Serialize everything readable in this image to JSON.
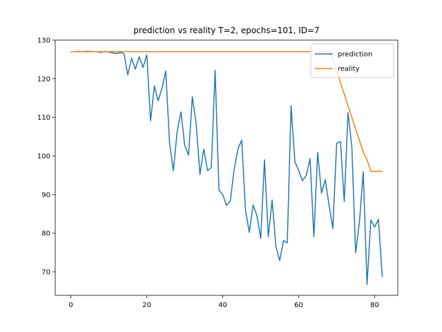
{
  "chart_data": {
    "type": "line",
    "title": "prediction vs reality T=2, epochs=101, ID=7",
    "xlabel": "",
    "ylabel": "",
    "xlim": [
      -4.1,
      86.1
    ],
    "ylim": [
      63.9,
      130
    ],
    "xticks": [
      0,
      20,
      40,
      60,
      80
    ],
    "yticks": [
      70,
      80,
      90,
      100,
      110,
      120,
      130
    ],
    "grid": false,
    "legend_position": "top-right",
    "series": [
      {
        "name": "prediction",
        "color": "#1f77b4",
        "x": [
          0,
          1,
          2,
          3,
          4,
          5,
          6,
          7,
          8,
          9,
          10,
          11,
          12,
          13,
          14,
          15,
          16,
          17,
          18,
          19,
          20,
          21,
          22,
          23,
          24,
          25,
          26,
          27,
          28,
          29,
          30,
          31,
          32,
          33,
          34,
          35,
          36,
          37,
          38,
          39,
          40,
          41,
          42,
          43,
          44,
          45,
          46,
          47,
          48,
          49,
          50,
          51,
          52,
          53,
          54,
          55,
          56,
          57,
          58,
          59,
          60,
          61,
          62,
          63,
          64,
          65,
          66,
          67,
          68,
          69,
          70,
          71,
          72,
          73,
          74,
          75,
          76,
          77,
          78,
          79,
          80,
          81,
          82
        ],
        "values": [
          127.0,
          127.0,
          127.1,
          127.0,
          127.1,
          127.1,
          127.0,
          127.0,
          126.8,
          127.1,
          126.9,
          126.7,
          126.5,
          126.8,
          126.5,
          121.0,
          125.3,
          122.5,
          125.7,
          122.9,
          126.2,
          109.1,
          118.1,
          114.3,
          117.5,
          122.0,
          103.3,
          96.2,
          106.3,
          111.4,
          102.7,
          100.2,
          115.3,
          108.4,
          95.2,
          101.8,
          96.2,
          97.0,
          122.2,
          91.2,
          90.0,
          87.2,
          88.4,
          96.4,
          101.8,
          104.1,
          85.9,
          80.2,
          87.3,
          84.6,
          78.6,
          99.0,
          79.1,
          88.6,
          76.6,
          72.9,
          78.1,
          77.5,
          113.0,
          98.5,
          96.2,
          93.6,
          95.0,
          99.3,
          79.1,
          100.9,
          90.4,
          93.8,
          87.3,
          81.2,
          103.3,
          103.7,
          88.2,
          111.2,
          102.3,
          74.9,
          82.9,
          95.9,
          66.7,
          83.4,
          81.6,
          83.6,
          68.8
        ]
      },
      {
        "name": "reality",
        "color": "#ff7f0e",
        "x": [
          0,
          1,
          2,
          3,
          4,
          5,
          6,
          7,
          8,
          9,
          10,
          11,
          12,
          13,
          14,
          15,
          16,
          17,
          18,
          19,
          20,
          21,
          22,
          23,
          24,
          25,
          26,
          27,
          28,
          29,
          30,
          31,
          32,
          33,
          34,
          35,
          36,
          37,
          38,
          39,
          40,
          41,
          42,
          43,
          44,
          45,
          46,
          47,
          48,
          49,
          50,
          51,
          52,
          53,
          54,
          55,
          56,
          57,
          58,
          59,
          60,
          61,
          62,
          63,
          64,
          65,
          66,
          67,
          68,
          69,
          70,
          71,
          72,
          73,
          74,
          75,
          76,
          77,
          78,
          79,
          80,
          81,
          82
        ],
        "values": [
          127,
          127,
          127,
          127,
          127,
          127,
          127,
          127,
          127,
          127,
          127,
          127,
          127,
          127,
          127,
          127,
          127,
          127,
          127,
          127,
          127,
          127,
          127,
          127,
          127,
          127,
          127,
          127,
          127,
          127,
          127,
          127,
          127,
          127,
          127,
          127,
          127,
          127,
          127,
          127,
          127,
          127,
          127,
          127,
          127,
          127,
          127,
          127,
          127,
          127,
          127,
          127,
          127,
          127,
          127,
          127,
          127,
          127,
          127,
          127,
          127,
          127,
          127,
          127,
          127,
          127,
          127,
          127,
          127,
          125,
          122,
          119,
          116,
          113,
          110,
          107,
          104,
          101,
          99,
          96,
          96,
          96,
          96
        ]
      }
    ]
  }
}
